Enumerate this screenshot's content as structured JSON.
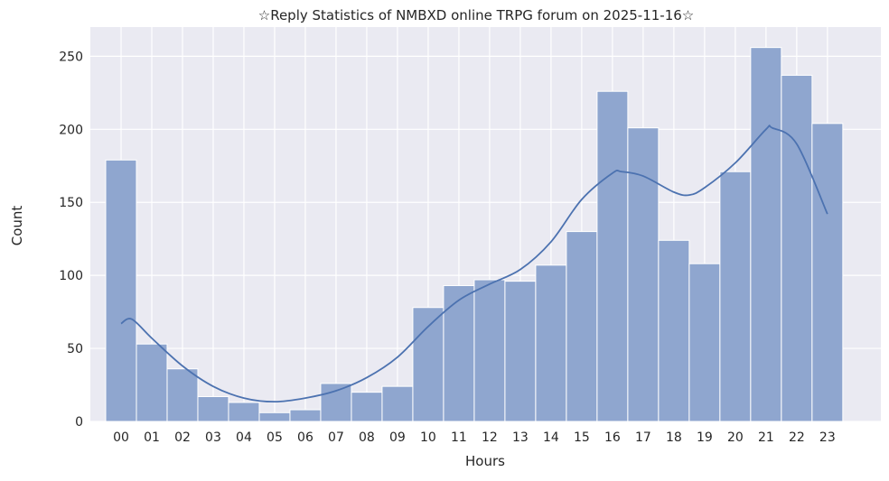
{
  "chart_data": {
    "type": "bar",
    "title": "☆Reply Statistics of NMBXD online TRPG forum on 2025-11-16☆",
    "xlabel": "Hours",
    "ylabel": "Count",
    "categories": [
      "00",
      "01",
      "02",
      "03",
      "04",
      "05",
      "06",
      "07",
      "08",
      "09",
      "10",
      "11",
      "12",
      "13",
      "14",
      "15",
      "16",
      "17",
      "18",
      "19",
      "20",
      "21",
      "22",
      "23"
    ],
    "values": [
      179,
      53,
      36,
      17,
      13,
      6,
      8,
      26,
      20,
      24,
      78,
      93,
      97,
      96,
      107,
      130,
      226,
      201,
      124,
      108,
      171,
      256,
      237,
      204
    ],
    "kde": {
      "x": [
        0,
        0.35,
        1,
        2,
        3,
        4,
        5,
        6,
        7,
        8,
        9,
        10,
        11,
        12,
        13,
        14,
        15,
        16,
        16.3,
        17,
        18,
        18.5,
        19,
        20,
        21,
        21.2,
        22,
        23
      ],
      "y": [
        67,
        70,
        57,
        38,
        24,
        16,
        13.5,
        16,
        21,
        30,
        44,
        65,
        83,
        94,
        104,
        123,
        152,
        170,
        171,
        168,
        157,
        155,
        160,
        177,
        200,
        201,
        190,
        142
      ]
    },
    "yticks": [
      0,
      50,
      100,
      150,
      200,
      250
    ],
    "ylim": [
      0,
      270
    ],
    "xlim": [
      -1,
      24.74
    ],
    "grid": true,
    "colors": {
      "bar": "#8fa6cf",
      "line": "#4c72b0",
      "background": "#eaeaf2"
    }
  }
}
